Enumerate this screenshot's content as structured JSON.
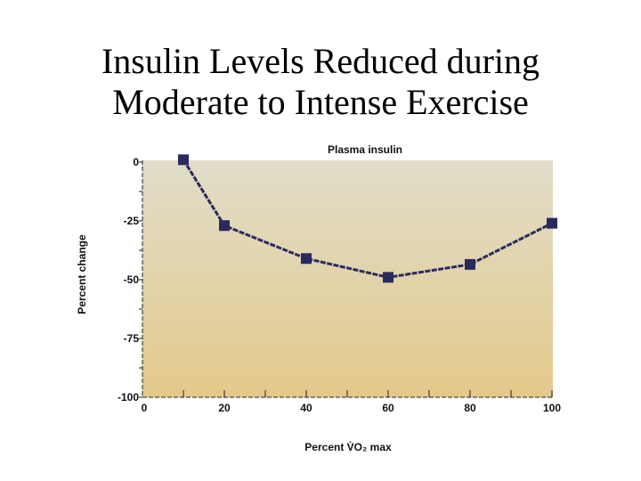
{
  "slide": {
    "title_line1": "Insulin Levels Reduced during",
    "title_line2": "Moderate to Intense Exercise"
  },
  "chart_data": {
    "type": "line",
    "title": "Plasma insulin",
    "xlabel": "Percent V̇O₂ max",
    "xlabel_parts": {
      "pre": "Percent V",
      "sub": "2",
      "mid": "O",
      "post": " max"
    },
    "ylabel": "Percent change",
    "xlim": [
      0,
      100
    ],
    "ylim": [
      -100,
      0
    ],
    "x_ticks": [
      0,
      20,
      40,
      60,
      80,
      100
    ],
    "y_ticks": [
      0,
      -25,
      -50,
      -75,
      -100
    ],
    "x": [
      10,
      20,
      40,
      60,
      80,
      100
    ],
    "y": [
      1,
      -27,
      -41,
      -49,
      -43.5,
      -26
    ],
    "marker": "square",
    "line_color": "#2a2a5e",
    "background_top": "#e1ddca",
    "background_bottom": "#e3c98a",
    "grid": false
  }
}
